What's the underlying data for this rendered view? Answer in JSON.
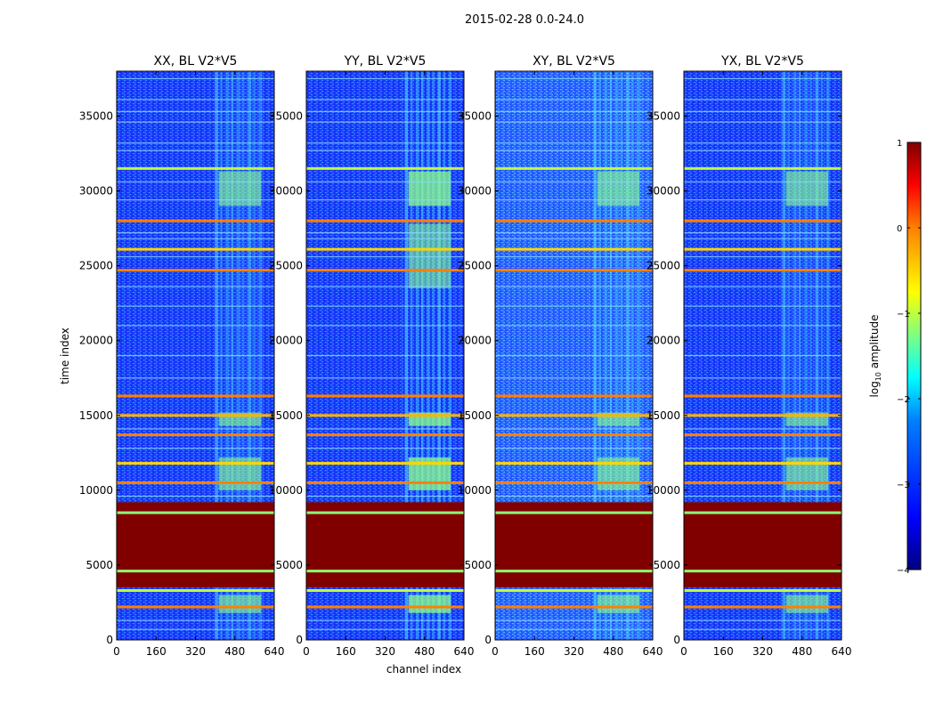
{
  "figure_title": "2015-02-28 0.0-24.0",
  "chart_data": {
    "type": "heatmap",
    "title": "2015-02-28 0.0-24.0",
    "xlabel": "channel index",
    "ylabel": "time index",
    "xlim": [
      0,
      640
    ],
    "ylim": [
      0,
      38000
    ],
    "x_ticks": [
      0,
      160,
      320,
      480,
      640
    ],
    "y_ticks": [
      0,
      5000,
      10000,
      15000,
      20000,
      25000,
      30000,
      35000
    ],
    "panels": [
      {
        "title": "XX, BL V2*V5",
        "rfi_band": [
          400,
          600
        ]
      },
      {
        "title": "YY, BL V2*V5",
        "rfi_band": [
          400,
          600
        ]
      },
      {
        "title": "XY, BL V2*V5",
        "rfi_band": [
          400,
          600
        ]
      },
      {
        "title": "YX, BL V2*V5",
        "rfi_band": [
          400,
          600
        ]
      }
    ],
    "flagged_block": [
      3500,
      9200
    ],
    "bright_rows": [
      {
        "y": 2200,
        "level": 0.0
      },
      {
        "y": 3300,
        "level": -1.0
      },
      {
        "y": 4600,
        "level": -1.2
      },
      {
        "y": 8500,
        "level": -1.2
      },
      {
        "y": 10500,
        "level": 0.0
      },
      {
        "y": 11800,
        "level": -0.5
      },
      {
        "y": 13700,
        "level": 0.0
      },
      {
        "y": 15000,
        "level": -0.3
      },
      {
        "y": 16300,
        "level": 0.0
      },
      {
        "y": 24700,
        "level": 0.0
      },
      {
        "y": 26100,
        "level": -0.5
      },
      {
        "y": 28000,
        "level": 0.0
      },
      {
        "y": 31500,
        "level": -1.0
      }
    ],
    "colorbar": {
      "label": "log10 amplitude",
      "label_main": "log",
      "label_sub": "10",
      "label_rest": " amplitude",
      "range": [
        -4,
        1
      ],
      "ticks": [
        "1",
        "0",
        "−1",
        "−2",
        "−3",
        "−4"
      ],
      "tick_values": [
        1,
        0,
        -1,
        -2,
        -3,
        -4
      ],
      "colors": [
        "#000080",
        "#0000ff",
        "#0080ff",
        "#00ffff",
        "#80ff80",
        "#ffff00",
        "#ff8000",
        "#ff0000",
        "#800000"
      ]
    }
  }
}
